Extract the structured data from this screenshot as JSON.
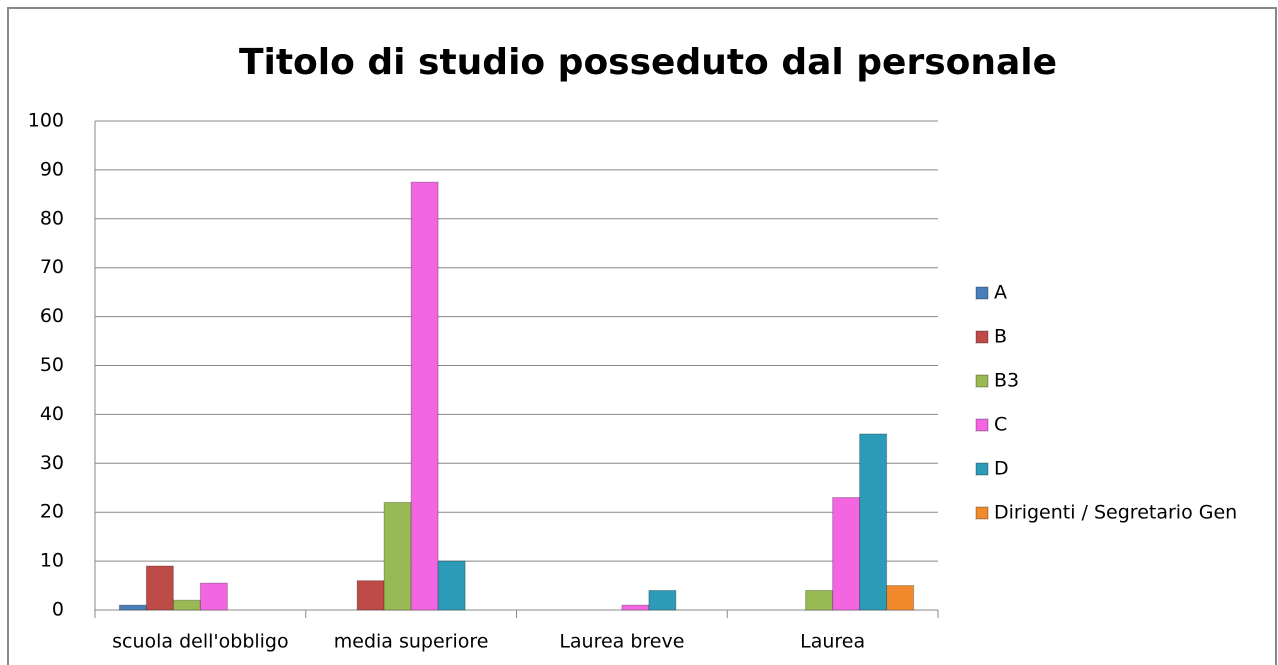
{
  "chart_data": {
    "type": "bar",
    "title": "Titolo di studio posseduto dal personale",
    "categories": [
      "scuola dell'obbligo",
      "media superiore",
      "Laurea breve",
      "Laurea"
    ],
    "series": [
      {
        "name": "A",
        "color": "#4a7ebb",
        "values": [
          1,
          0,
          0,
          0
        ]
      },
      {
        "name": "B",
        "color": "#be4b48",
        "values": [
          9,
          6,
          0,
          0
        ]
      },
      {
        "name": "B3",
        "color": "#98b954",
        "values": [
          2,
          22,
          0,
          4
        ]
      },
      {
        "name": "C",
        "color": "#f266e2",
        "values": [
          5.5,
          87.5,
          1,
          23
        ]
      },
      {
        "name": "D",
        "color": "#2c9bb8",
        "values": [
          0,
          10,
          4,
          36
        ]
      },
      {
        "name": "Dirigenti / Segretario Gen",
        "color": "#f08a2c",
        "values": [
          0,
          0,
          0,
          5
        ]
      }
    ],
    "ylim": [
      0,
      100
    ],
    "yticks": [
      0,
      10,
      20,
      30,
      40,
      50,
      60,
      70,
      80,
      90,
      100
    ],
    "grid": true,
    "legend": "right"
  }
}
